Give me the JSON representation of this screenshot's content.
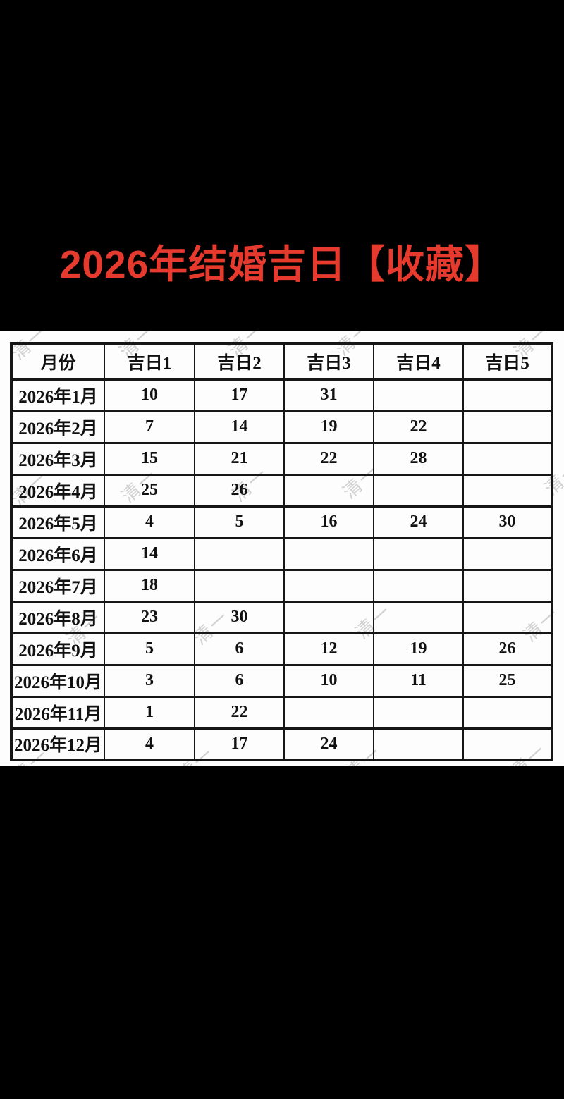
{
  "title": {
    "text": "2026年结婚吉日【收藏】",
    "color": "#e63a2e"
  },
  "watermark": {
    "text": "清一",
    "color": "#b9b9b9"
  },
  "colors": {
    "background": "#000000",
    "sheet": "#fdfdfd",
    "table_border": "#161616",
    "table_text": "#111111"
  },
  "table": {
    "headers": [
      "月份",
      "吉日1",
      "吉日2",
      "吉日3",
      "吉日4",
      "吉日5"
    ],
    "rows": [
      {
        "month": "2026年1月",
        "days": [
          "10",
          "17",
          "31",
          "",
          ""
        ]
      },
      {
        "month": "2026年2月",
        "days": [
          "7",
          "14",
          "19",
          "22",
          ""
        ]
      },
      {
        "month": "2026年3月",
        "days": [
          "15",
          "21",
          "22",
          "28",
          ""
        ]
      },
      {
        "month": "2026年4月",
        "days": [
          "25",
          "26",
          "",
          "",
          ""
        ]
      },
      {
        "month": "2026年5月",
        "days": [
          "4",
          "5",
          "16",
          "24",
          "30"
        ]
      },
      {
        "month": "2026年6月",
        "days": [
          "14",
          "",
          "",
          "",
          ""
        ]
      },
      {
        "month": "2026年7月",
        "days": [
          "18",
          "",
          "",
          "",
          ""
        ]
      },
      {
        "month": "2026年8月",
        "days": [
          "23",
          "30",
          "",
          "",
          ""
        ]
      },
      {
        "month": "2026年9月",
        "days": [
          "5",
          "6",
          "12",
          "19",
          "26"
        ]
      },
      {
        "month": "2026年10月",
        "days": [
          "3",
          "6",
          "10",
          "11",
          "25"
        ]
      },
      {
        "month": "2026年11月",
        "days": [
          "1",
          "22",
          "",
          "",
          ""
        ]
      },
      {
        "month": "2026年12月",
        "days": [
          "4",
          "17",
          "24",
          "",
          ""
        ]
      }
    ]
  }
}
